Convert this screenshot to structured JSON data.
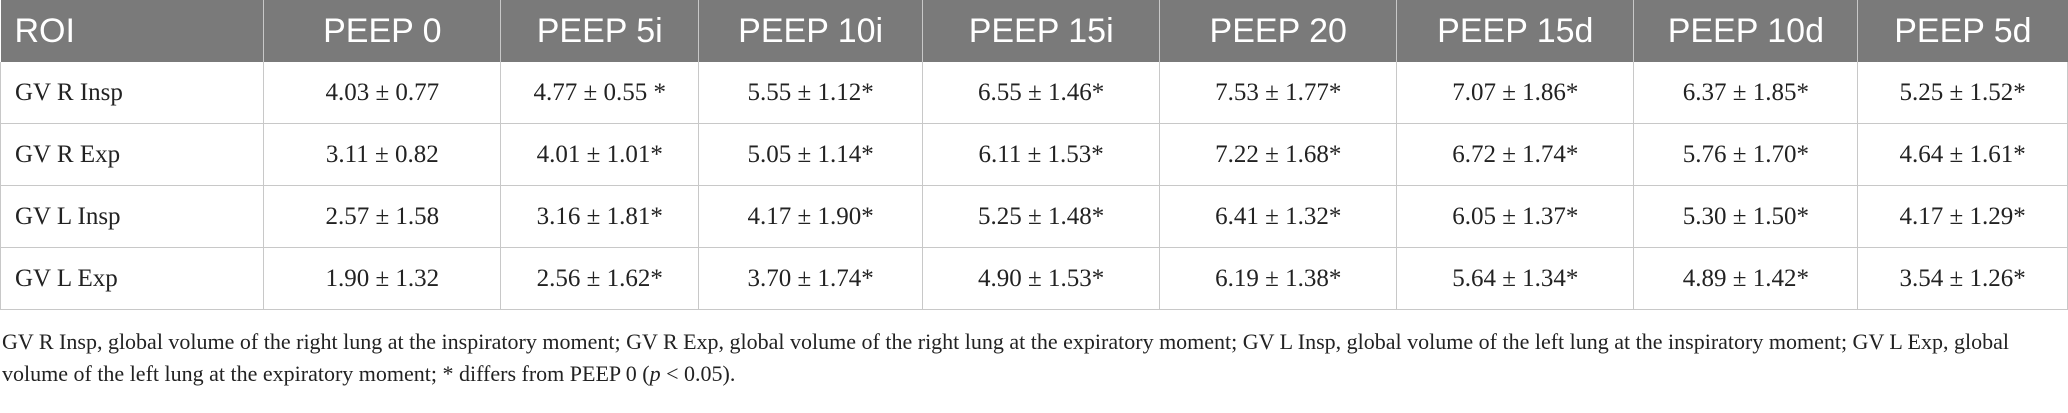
{
  "table": {
    "headers": [
      "ROI",
      "PEEP 0",
      "PEEP 5i",
      "PEEP 10i",
      "PEEP 15i",
      "PEEP 20",
      "PEEP 15d",
      "PEEP 10d",
      "PEEP 5d"
    ],
    "rows": [
      [
        "GV R Insp",
        "4.03 ± 0.77",
        "4.77 ± 0.55 *",
        "5.55 ± 1.12*",
        "6.55 ± 1.46*",
        "7.53 ± 1.77*",
        "7.07 ± 1.86*",
        "6.37 ± 1.85*",
        "5.25 ± 1.52*"
      ],
      [
        "GV R Exp",
        "3.11 ± 0.82",
        "4.01 ± 1.01*",
        "5.05 ± 1.14*",
        "6.11 ± 1.53*",
        "7.22 ± 1.68*",
        "6.72 ± 1.74*",
        "5.76 ± 1.70*",
        "4.64 ± 1.61*"
      ],
      [
        "GV L Insp",
        "2.57 ± 1.58",
        "3.16 ± 1.81*",
        "4.17 ± 1.90*",
        "5.25 ± 1.48*",
        "6.41 ± 1.32*",
        "6.05 ± 1.37*",
        "5.30 ± 1.50*",
        "4.17 ± 1.29*"
      ],
      [
        "GV L Exp",
        "1.90 ± 1.32",
        "2.56 ± 1.62*",
        "3.70 ± 1.74*",
        "4.90 ± 1.53*",
        "6.19 ± 1.38*",
        "5.64 ± 1.34*",
        "4.89 ± 1.42*",
        "3.54 ± 1.26*"
      ]
    ]
  },
  "footnote": {
    "text_before": "GV R Insp, global volume of the right lung at the inspiratory moment; GV R Exp, global volume of the right lung at the expiratory moment; GV L Insp, global volume of the left lung at the inspiratory moment; GV L Exp, global volume of the left lung at the expiratory moment; * differs from PEEP 0 (",
    "p_symbol": "p",
    "text_after": " < 0.05)."
  },
  "colors": {
    "header_background": "#7a7a7a",
    "header_text": "#ffffff",
    "grid_line": "#c8c8c8",
    "body_text": "#222222"
  }
}
